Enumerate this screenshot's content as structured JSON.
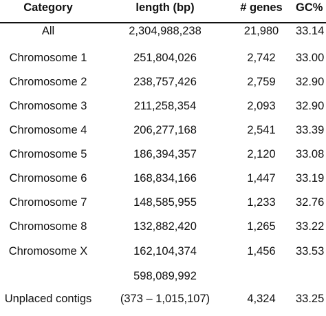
{
  "table": {
    "headers": {
      "category": "Category",
      "length": "length (bp)",
      "genes": "# genes",
      "gc": "GC%"
    },
    "rows": [
      {
        "category": "All",
        "length": "2,304,988,238",
        "genes": "21,980",
        "gc": "33.14"
      },
      {
        "category": "Chromosome 1",
        "length": "251,804,026",
        "genes": "2,742",
        "gc": "33.00"
      },
      {
        "category": "Chromosome 2",
        "length": "238,757,426",
        "genes": "2,759",
        "gc": "32.90"
      },
      {
        "category": "Chromosome 3",
        "length": "211,258,354",
        "genes": "2,093",
        "gc": "32.90"
      },
      {
        "category": "Chromosome 4",
        "length": "206,277,168",
        "genes": "2,541",
        "gc": "33.39"
      },
      {
        "category": "Chromosome 5",
        "length": "186,394,357",
        "genes": "2,120",
        "gc": "33.08"
      },
      {
        "category": "Chromosome 6",
        "length": "168,834,166",
        "genes": "1,447",
        "gc": "33.19"
      },
      {
        "category": "Chromosome 7",
        "length": "148,585,955",
        "genes": "1,233",
        "gc": "32.76"
      },
      {
        "category": "Chromosome 8",
        "length": "132,882,420",
        "genes": "1,265",
        "gc": "33.22"
      },
      {
        "category": "Chromosome X",
        "length": "162,104,374",
        "genes": "1,456",
        "gc": "33.53"
      },
      {
        "category": "",
        "length": "598,089,992",
        "genes": "",
        "gc": ""
      },
      {
        "category": "Unplaced contigs",
        "length": "(373 – 1,015,107)",
        "genes": "4,324",
        "gc": "33.25"
      }
    ]
  }
}
